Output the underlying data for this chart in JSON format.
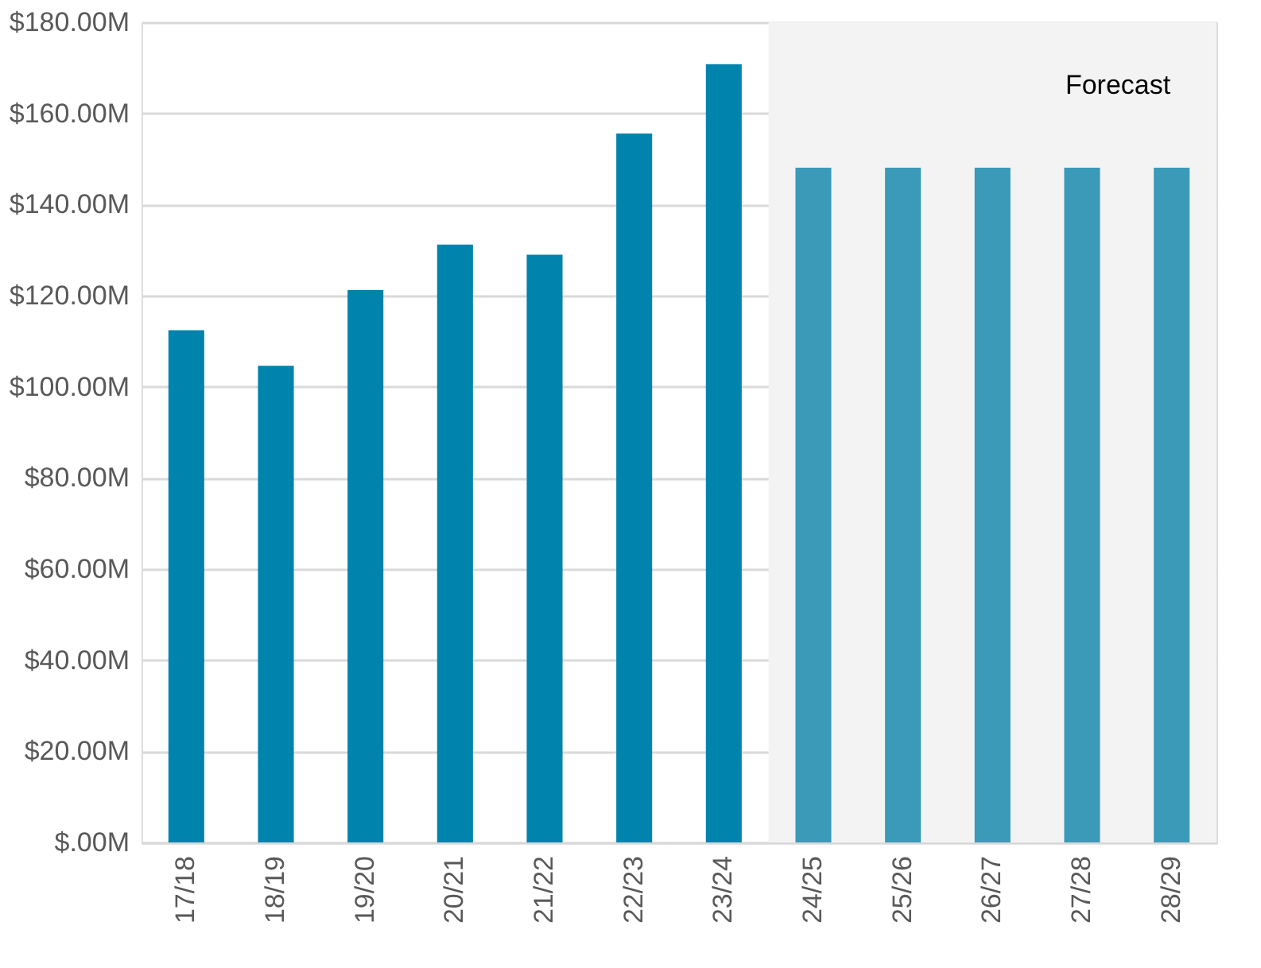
{
  "chart_data": {
    "type": "bar",
    "categories": [
      "17/18",
      "18/19",
      "19/20",
      "20/21",
      "21/22",
      "22/23",
      "23/24",
      "24/25",
      "25/26",
      "26/27",
      "27/28",
      "28/29"
    ],
    "values": [
      112.4,
      104.6,
      121.2,
      131.2,
      129.0,
      155.6,
      170.8,
      148.1,
      148.1,
      148.1,
      148.1,
      148.1
    ],
    "colors": [
      "#0083ad",
      "#0083ad",
      "#0083ad",
      "#0083ad",
      "#0083ad",
      "#0083ad",
      "#0083ad",
      "#3a9ab8",
      "#3a9ab8",
      "#3a9ab8",
      "#3a9ab8",
      "#3a9ab8"
    ],
    "ylim": [
      0,
      180
    ],
    "yticks": [
      {
        "value": 0,
        "label": "$.00M"
      },
      {
        "value": 20,
        "label": "$20.00M"
      },
      {
        "value": 40,
        "label": "$40.00M"
      },
      {
        "value": 60,
        "label": "$60.00M"
      },
      {
        "value": 80,
        "label": "$80.00M"
      },
      {
        "value": 100,
        "label": "$100.00M"
      },
      {
        "value": 120,
        "label": "$120.00M"
      },
      {
        "value": 140,
        "label": "$140.00M"
      },
      {
        "value": 160,
        "label": "$160.00M"
      },
      {
        "value": 180,
        "label": "$180.00M"
      }
    ],
    "grid": "y",
    "bands": [
      {
        "axis": "x",
        "from": "24/25",
        "to": "28/29",
        "label": "Forecast",
        "color": "#f3f3f3"
      }
    ]
  }
}
